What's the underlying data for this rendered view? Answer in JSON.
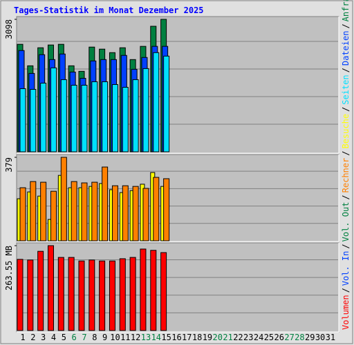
{
  "chart_data": [
    {
      "type": "bar",
      "title": "Tages-Statistik im Monat Dezember 2025",
      "ylim": [
        0,
        3098
      ],
      "yticks": [
        3098
      ],
      "series": [
        {
          "name": "Anfragen",
          "color": "#008040",
          "values": [
            2514,
            2011,
            2433,
            2498,
            2514,
            2011,
            1882,
            2449,
            2401,
            2319,
            2433,
            2157,
            2466,
            2936,
            3098,
            null,
            null,
            null,
            null,
            null,
            null,
            null,
            null,
            null,
            null,
            null,
            null,
            null,
            null,
            null,
            null
          ]
        },
        {
          "name": "Dateien",
          "color": "#0040ff",
          "values": [
            2368,
            1833,
            2271,
            2157,
            2287,
            1865,
            1719,
            2125,
            2157,
            2157,
            2255,
            1930,
            2206,
            2466,
            2466,
            null,
            null,
            null,
            null,
            null,
            null,
            null,
            null,
            null,
            null,
            null,
            null,
            null,
            null,
            null,
            null
          ]
        },
        {
          "name": "Seiten",
          "color": "#00e0ff",
          "values": [
            1476,
            1460,
            1606,
            1963,
            1687,
            1557,
            1557,
            1638,
            1638,
            1573,
            1508,
            1687,
            1946,
            2319,
            2238,
            null,
            null,
            null,
            null,
            null,
            null,
            null,
            null,
            null,
            null,
            null,
            null,
            null,
            null,
            null,
            null
          ]
        }
      ]
    },
    {
      "type": "bar",
      "ylim": [
        0,
        379
      ],
      "yticks": [
        379
      ],
      "series": [
        {
          "name": "Besuche",
          "color": "#ffff00",
          "values": [
            191,
            222,
            203,
            97,
            297,
            241,
            241,
            247,
            260,
            232,
            219,
            228,
            257,
            310,
            247,
            null,
            null,
            null,
            null,
            null,
            null,
            null,
            null,
            null,
            null,
            null,
            null,
            null,
            null,
            null,
            null
          ]
        },
        {
          "name": "Rechner",
          "color": "#ff8000",
          "values": [
            241,
            269,
            266,
            225,
            379,
            269,
            263,
            266,
            335,
            250,
            250,
            247,
            238,
            288,
            282,
            null,
            null,
            null,
            null,
            null,
            null,
            null,
            null,
            null,
            null,
            null,
            null,
            null,
            null,
            null,
            null
          ]
        }
      ]
    },
    {
      "type": "bar",
      "ylim": [
        0,
        263.55
      ],
      "yticks": [
        {
          "value": 263.55,
          "label": "263.55 MB"
        }
      ],
      "categories": [
        "1",
        "2",
        "3",
        "4",
        "5",
        "6",
        "7",
        "8",
        "9",
        "10",
        "11",
        "12",
        "13",
        "14",
        "15",
        "16",
        "17",
        "18",
        "19",
        "20",
        "21",
        "22",
        "23",
        "24",
        "25",
        "26",
        "27",
        "28",
        "29",
        "30",
        "31"
      ],
      "weekend_categories": [
        "6",
        "7",
        "13",
        "14",
        "20",
        "21",
        "27",
        "28"
      ],
      "weekend_color": "#008040",
      "weekday_color": "#000000",
      "legend_separator": "/",
      "series": [
        {
          "name": "Vol. Out",
          "color": "#008040",
          "values": [
            null,
            null,
            null,
            null,
            null,
            null,
            null,
            null,
            null,
            null,
            null,
            null,
            null,
            null,
            null,
            null,
            null,
            null,
            null,
            null,
            null,
            null,
            null,
            null,
            null,
            null,
            null,
            null,
            null,
            null,
            null
          ]
        },
        {
          "name": "Vol. In",
          "color": "#0040ff",
          "values": [
            null,
            null,
            null,
            null,
            null,
            null,
            null,
            null,
            null,
            null,
            null,
            null,
            null,
            null,
            null,
            null,
            null,
            null,
            null,
            null,
            null,
            null,
            null,
            null,
            null,
            null,
            null,
            null,
            null,
            null,
            null
          ]
        },
        {
          "name": "Volumen",
          "color": "#ff0000",
          "values": [
            221,
            219,
            246,
            263.55,
            227,
            227,
            216,
            219,
            216,
            216,
            223,
            227,
            253,
            249,
            242,
            null,
            null,
            null,
            null,
            null,
            null,
            null,
            null,
            null,
            null,
            null,
            null,
            null,
            null,
            null,
            null
          ]
        }
      ]
    }
  ]
}
